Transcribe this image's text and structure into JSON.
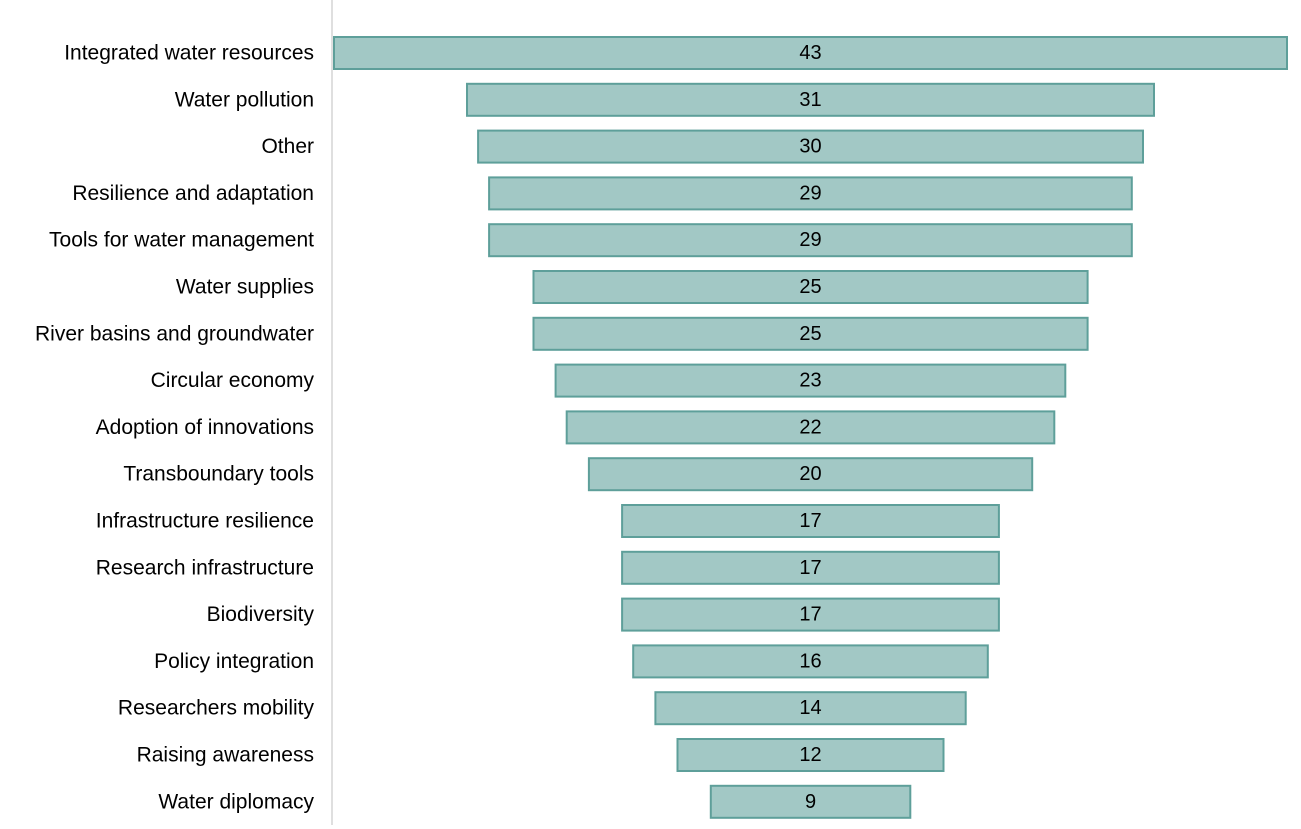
{
  "chart_data": {
    "type": "bar",
    "orientation": "horizontal",
    "alignment": "centered-funnel",
    "title": "",
    "xlabel": "",
    "ylabel": "",
    "xlim": [
      0,
      43
    ],
    "grid": false,
    "legend": "none",
    "bar_fill": "#a2c8c5",
    "bar_stroke": "#5e9f9a",
    "axis_color": "#bfbfbf",
    "categories": [
      "Integrated water resources",
      "Water pollution",
      "Other",
      "Resilience and adaptation",
      "Tools for water management",
      "Water supplies",
      "River basins and groundwater",
      "Circular economy",
      "Adoption of innovations",
      "Transboundary tools",
      "Infrastructure resilience",
      "Research infrastructure",
      "Biodiversity",
      "Policy integration",
      "Researchers mobility",
      "Raising awareness",
      "Water diplomacy"
    ],
    "values": [
      43,
      31,
      30,
      29,
      29,
      25,
      25,
      23,
      22,
      20,
      17,
      17,
      17,
      16,
      14,
      12,
      9
    ]
  }
}
